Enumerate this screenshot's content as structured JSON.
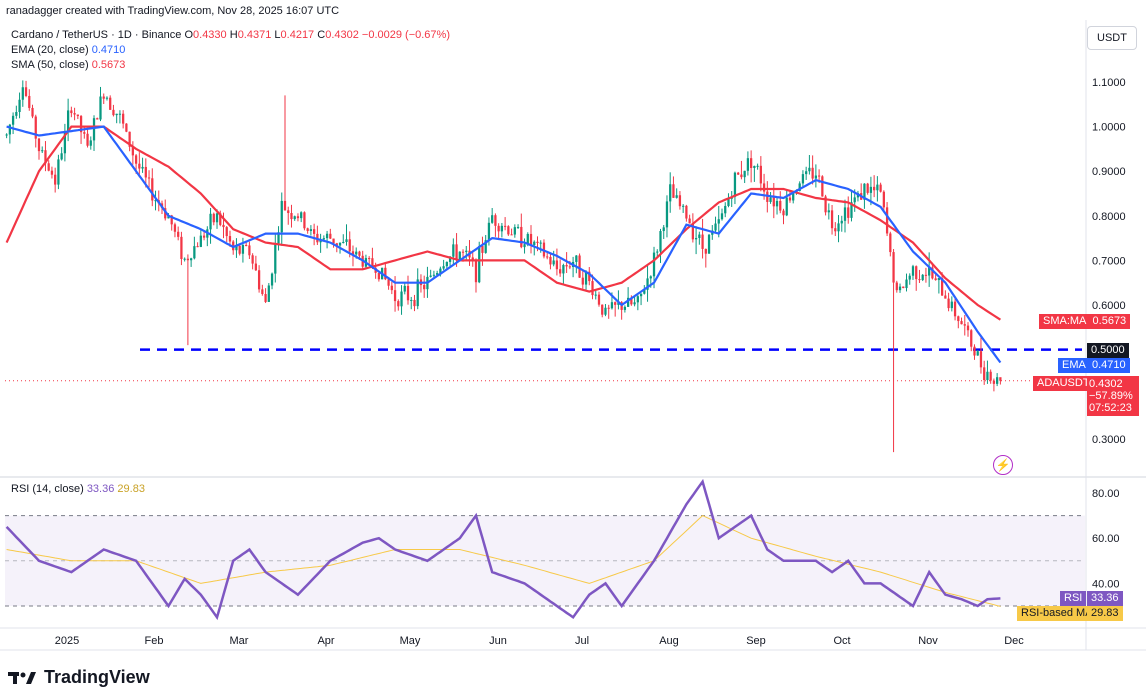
{
  "header": {
    "attribution": "ranadagger created with TradingView.com, Nov 28, 2025 16:07 UTC"
  },
  "legend": {
    "symbol": "Cardano / TetherUS · 1D · Binance",
    "o_label": "O",
    "o": "0.4330",
    "h_label": "H",
    "h": "0.4371",
    "l_label": "L",
    "l": "0.4217",
    "c_label": "C",
    "c": "0.4302",
    "change": "−0.0029 (−0.67%)",
    "ema_label": "EMA (20, close)",
    "ema_value": "0.4710",
    "sma_label": "SMA (50, close)",
    "sma_value": "0.5673",
    "rsi_label": "RSI (14, close)",
    "rsi_value": "33.36",
    "rsi_ma_value": "29.83"
  },
  "currency_button": "USDT",
  "price_tags": {
    "sma_name": "SMA:MA",
    "sma": "0.5673",
    "level": "0.5000",
    "ema_name": "EMA",
    "ema": "0.4710",
    "symbol_name": "ADAUSDT",
    "price": "0.4302",
    "pct": "−57.89%",
    "countdown": "07:52:23",
    "rsi_name": "RSI",
    "rsi": "33.36",
    "rsi_ma_name": "RSI-based MA",
    "rsi_ma": "29.83"
  },
  "brand": "TradingView",
  "colors": {
    "up": "#089981",
    "down": "#f23645",
    "ema": "#2962ff",
    "sma": "#f23645",
    "rsi": "#7e57c2",
    "rsi_ma": "#f7c948",
    "level": "#0000ff"
  },
  "chart_data": [
    {
      "type": "candlestick",
      "title": "Cardano / TetherUS · 1D · Binance",
      "y_ticks": [
        1.1,
        1.0,
        0.9,
        0.8,
        0.7,
        0.6,
        0.3
      ],
      "y_tick_labels": [
        "1.1000",
        "1.0000",
        "0.9000",
        "0.8000",
        "0.7000",
        "0.6000",
        "0.3000"
      ],
      "x_ticks": [
        "2025",
        "Feb",
        "Mar",
        "Apr",
        "May",
        "Jun",
        "Jul",
        "Aug",
        "Sep",
        "Oct",
        "Nov",
        "Dec"
      ],
      "horizontal_level": 0.5,
      "last": {
        "open": 0.433,
        "high": 0.4371,
        "low": 0.4217,
        "close": 0.4302
      },
      "price_path": [
        [
          0,
          0.98
        ],
        [
          5,
          1.1
        ],
        [
          10,
          0.95
        ],
        [
          15,
          0.88
        ],
        [
          20,
          1.05
        ],
        [
          25,
          0.95
        ],
        [
          30,
          1.08
        ],
        [
          35,
          1.02
        ],
        [
          40,
          0.92
        ],
        [
          45,
          0.85
        ],
        [
          50,
          0.8
        ],
        [
          55,
          0.7
        ],
        [
          60,
          0.75
        ],
        [
          65,
          0.8
        ],
        [
          70,
          0.72
        ],
        [
          75,
          0.72
        ],
        [
          80,
          0.6
        ],
        [
          85,
          0.82
        ],
        [
          90,
          0.8
        ],
        [
          95,
          0.75
        ],
        [
          100,
          0.75
        ],
        [
          105,
          0.73
        ],
        [
          110,
          0.7
        ],
        [
          115,
          0.68
        ],
        [
          120,
          0.62
        ],
        [
          125,
          0.62
        ],
        [
          130,
          0.65
        ],
        [
          135,
          0.7
        ],
        [
          140,
          0.72
        ],
        [
          145,
          0.68
        ],
        [
          150,
          0.8
        ],
        [
          155,
          0.77
        ],
        [
          160,
          0.75
        ],
        [
          165,
          0.72
        ],
        [
          170,
          0.68
        ],
        [
          175,
          0.7
        ],
        [
          180,
          0.65
        ],
        [
          185,
          0.58
        ],
        [
          190,
          0.6
        ],
        [
          195,
          0.6
        ],
        [
          200,
          0.7
        ],
        [
          205,
          0.85
        ],
        [
          210,
          0.8
        ],
        [
          215,
          0.73
        ],
        [
          220,
          0.78
        ],
        [
          225,
          0.88
        ],
        [
          230,
          0.93
        ],
        [
          235,
          0.85
        ],
        [
          240,
          0.82
        ],
        [
          245,
          0.88
        ],
        [
          250,
          0.9
        ],
        [
          255,
          0.78
        ],
        [
          260,
          0.82
        ],
        [
          265,
          0.86
        ],
        [
          270,
          0.85
        ],
        [
          275,
          0.62
        ],
        [
          280,
          0.68
        ],
        [
          285,
          0.67
        ],
        [
          290,
          0.62
        ],
        [
          295,
          0.56
        ],
        [
          300,
          0.48
        ],
        [
          305,
          0.43
        ],
        [
          307,
          0.43
        ]
      ],
      "ema20_path": [
        [
          0,
          1.0
        ],
        [
          10,
          0.98
        ],
        [
          20,
          0.99
        ],
        [
          30,
          1.0
        ],
        [
          40,
          0.9
        ],
        [
          50,
          0.8
        ],
        [
          60,
          0.77
        ],
        [
          70,
          0.73
        ],
        [
          80,
          0.76
        ],
        [
          90,
          0.76
        ],
        [
          100,
          0.74
        ],
        [
          110,
          0.7
        ],
        [
          120,
          0.65
        ],
        [
          130,
          0.65
        ],
        [
          140,
          0.7
        ],
        [
          150,
          0.75
        ],
        [
          160,
          0.74
        ],
        [
          170,
          0.71
        ],
        [
          180,
          0.67
        ],
        [
          190,
          0.6
        ],
        [
          200,
          0.65
        ],
        [
          210,
          0.78
        ],
        [
          220,
          0.76
        ],
        [
          230,
          0.85
        ],
        [
          240,
          0.84
        ],
        [
          250,
          0.88
        ],
        [
          260,
          0.86
        ],
        [
          270,
          0.82
        ],
        [
          280,
          0.72
        ],
        [
          290,
          0.65
        ],
        [
          300,
          0.54
        ],
        [
          307,
          0.471
        ]
      ],
      "sma50_path": [
        [
          0,
          0.74
        ],
        [
          10,
          0.9
        ],
        [
          20,
          1.0
        ],
        [
          30,
          1.0
        ],
        [
          40,
          0.95
        ],
        [
          50,
          0.91
        ],
        [
          60,
          0.85
        ],
        [
          70,
          0.77
        ],
        [
          80,
          0.74
        ],
        [
          90,
          0.73
        ],
        [
          100,
          0.68
        ],
        [
          110,
          0.68
        ],
        [
          120,
          0.7
        ],
        [
          130,
          0.72
        ],
        [
          140,
          0.7
        ],
        [
          150,
          0.7
        ],
        [
          160,
          0.7
        ],
        [
          170,
          0.65
        ],
        [
          180,
          0.63
        ],
        [
          190,
          0.65
        ],
        [
          200,
          0.7
        ],
        [
          210,
          0.77
        ],
        [
          220,
          0.83
        ],
        [
          230,
          0.86
        ],
        [
          240,
          0.86
        ],
        [
          250,
          0.84
        ],
        [
          260,
          0.83
        ],
        [
          270,
          0.79
        ],
        [
          280,
          0.74
        ],
        [
          290,
          0.66
        ],
        [
          300,
          0.6
        ],
        [
          307,
          0.567
        ]
      ]
    },
    {
      "type": "line",
      "title": "RSI (14, close)",
      "y_ticks": [
        80,
        60,
        40
      ],
      "y_tick_labels": [
        "80.00",
        "60.00",
        "40.00"
      ],
      "band": [
        30,
        70
      ],
      "mid": 50,
      "rsi_path": [
        [
          0,
          65
        ],
        [
          10,
          50
        ],
        [
          20,
          45
        ],
        [
          30,
          55
        ],
        [
          40,
          50
        ],
        [
          50,
          30
        ],
        [
          55,
          42
        ],
        [
          60,
          35
        ],
        [
          65,
          25
        ],
        [
          70,
          50
        ],
        [
          75,
          55
        ],
        [
          80,
          45
        ],
        [
          85,
          40
        ],
        [
          90,
          35
        ],
        [
          100,
          50
        ],
        [
          110,
          58
        ],
        [
          115,
          60
        ],
        [
          120,
          55
        ],
        [
          130,
          50
        ],
        [
          140,
          60
        ],
        [
          145,
          70
        ],
        [
          150,
          45
        ],
        [
          160,
          40
        ],
        [
          170,
          30
        ],
        [
          175,
          25
        ],
        [
          180,
          35
        ],
        [
          185,
          40
        ],
        [
          190,
          30
        ],
        [
          200,
          50
        ],
        [
          210,
          75
        ],
        [
          215,
          85
        ],
        [
          220,
          60
        ],
        [
          230,
          70
        ],
        [
          235,
          55
        ],
        [
          240,
          50
        ],
        [
          250,
          50
        ],
        [
          255,
          45
        ],
        [
          260,
          50
        ],
        [
          265,
          40
        ],
        [
          270,
          40
        ],
        [
          275,
          35
        ],
        [
          280,
          30
        ],
        [
          285,
          45
        ],
        [
          290,
          35
        ],
        [
          295,
          33
        ],
        [
          300,
          30
        ],
        [
          303,
          33
        ],
        [
          307,
          33.36
        ]
      ],
      "rsi_ma_path": [
        [
          0,
          55
        ],
        [
          20,
          50
        ],
        [
          40,
          50
        ],
        [
          60,
          40
        ],
        [
          80,
          45
        ],
        [
          100,
          48
        ],
        [
          120,
          55
        ],
        [
          140,
          55
        ],
        [
          160,
          48
        ],
        [
          180,
          40
        ],
        [
          200,
          50
        ],
        [
          215,
          70
        ],
        [
          230,
          60
        ],
        [
          250,
          52
        ],
        [
          270,
          45
        ],
        [
          290,
          36
        ],
        [
          307,
          29.83
        ]
      ]
    }
  ]
}
